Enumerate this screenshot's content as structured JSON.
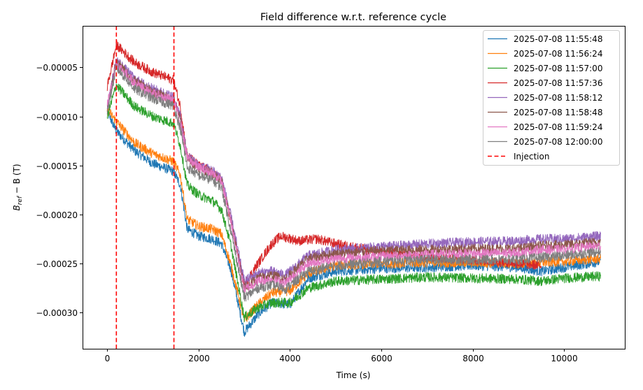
{
  "chart_data": {
    "type": "line",
    "title": "Field difference w.r.t. reference cycle",
    "xlabel": "Time (s)",
    "ylabel_main": "B",
    "ylabel_sub": "ref",
    "ylabel_rest": " − B (T)",
    "xlim": [
      -540,
      11330
    ],
    "ylim": [
      -0.000337,
      -7.6e-06
    ],
    "xticks": [
      0,
      2000,
      4000,
      6000,
      8000,
      10000
    ],
    "xtick_labels": [
      "0",
      "2000",
      "4000",
      "6000",
      "8000",
      "10000"
    ],
    "yticks": [
      -5e-05,
      -0.0001,
      -0.00015,
      -0.0002,
      -0.00025,
      -0.0003
    ],
    "ytick_labels": [
      "−0.00005",
      "−0.00010",
      "−0.00015",
      "−0.00020",
      "−0.00025",
      "−0.00030"
    ],
    "grid": false,
    "legend_position": "top-right",
    "injection": {
      "label": "Injection",
      "x": [
        200,
        1460
      ],
      "color": "#ff0000",
      "style": "dashed"
    },
    "noise_amplitude": 5e-06,
    "series": [
      {
        "name": "2025-07-08 11:55:48",
        "color": "#1f77b4",
        "points": [
          [
            0,
            -9.5e-05
          ],
          [
            200,
            -0.000115
          ],
          [
            600,
            -0.000135
          ],
          [
            1000,
            -0.000148
          ],
          [
            1450,
            -0.000156
          ],
          [
            1600,
            -0.00017
          ],
          [
            1750,
            -0.000215
          ],
          [
            2000,
            -0.000222
          ],
          [
            2300,
            -0.000225
          ],
          [
            2500,
            -0.00023
          ],
          [
            2700,
            -0.000255
          ],
          [
            3000,
            -0.00032
          ],
          [
            3300,
            -0.000302
          ],
          [
            3600,
            -0.00029
          ],
          [
            4000,
            -0.000292
          ],
          [
            4400,
            -0.000265
          ],
          [
            5000,
            -0.000258
          ],
          [
            6000,
            -0.000255
          ],
          [
            7000,
            -0.000254
          ],
          [
            8000,
            -0.000252
          ],
          [
            9000,
            -0.000254
          ],
          [
            9500,
            -0.000258
          ],
          [
            10000,
            -0.000254
          ],
          [
            10800,
            -0.000248
          ]
        ]
      },
      {
        "name": "2025-07-08 11:56:24",
        "color": "#ff7f0e",
        "points": [
          [
            0,
            -9.3e-05
          ],
          [
            200,
            -0.000105
          ],
          [
            600,
            -0.000127
          ],
          [
            1000,
            -0.000138
          ],
          [
            1450,
            -0.000146
          ],
          [
            1600,
            -0.00016
          ],
          [
            1750,
            -0.000205
          ],
          [
            2000,
            -0.000212
          ],
          [
            2300,
            -0.000215
          ],
          [
            2500,
            -0.00022
          ],
          [
            2700,
            -0.00025
          ],
          [
            3000,
            -0.000308
          ],
          [
            3300,
            -0.000292
          ],
          [
            3600,
            -0.00028
          ],
          [
            4000,
            -0.000278
          ],
          [
            4400,
            -0.00026
          ],
          [
            5000,
            -0.000252
          ],
          [
            6000,
            -0.00025
          ],
          [
            7000,
            -0.000249
          ],
          [
            8000,
            -0.000249
          ],
          [
            9000,
            -0.00025
          ],
          [
            10000,
            -0.000248
          ],
          [
            10800,
            -0.000245
          ]
        ]
      },
      {
        "name": "2025-07-08 11:57:00",
        "color": "#2ca02c",
        "points": [
          [
            0,
            -0.0001
          ],
          [
            200,
            -6.8e-05
          ],
          [
            600,
            -9e-05
          ],
          [
            1000,
            -0.0001
          ],
          [
            1450,
            -0.000107
          ],
          [
            1600,
            -0.00013
          ],
          [
            1750,
            -0.00017
          ],
          [
            2000,
            -0.00018
          ],
          [
            2300,
            -0.000186
          ],
          [
            2500,
            -0.000195
          ],
          [
            2700,
            -0.00023
          ],
          [
            3000,
            -0.000305
          ],
          [
            3300,
            -0.000295
          ],
          [
            3600,
            -0.00029
          ],
          [
            4000,
            -0.00029
          ],
          [
            4400,
            -0.000275
          ],
          [
            5000,
            -0.000268
          ],
          [
            6000,
            -0.000266
          ],
          [
            7000,
            -0.000264
          ],
          [
            8000,
            -0.000265
          ],
          [
            9000,
            -0.000266
          ],
          [
            9500,
            -0.000268
          ],
          [
            10000,
            -0.000265
          ],
          [
            10800,
            -0.000263
          ]
        ]
      },
      {
        "name": "2025-07-08 11:57:36",
        "color": "#d62728",
        "points": [
          [
            0,
            -7e-05
          ],
          [
            200,
            -2.7e-05
          ],
          [
            600,
            -4.5e-05
          ],
          [
            1000,
            -5.5e-05
          ],
          [
            1450,
            -6.3e-05
          ],
          [
            1600,
            -9e-05
          ],
          [
            1750,
            -0.00014
          ],
          [
            2000,
            -0.00015
          ],
          [
            2300,
            -0.000157
          ],
          [
            2500,
            -0.000165
          ],
          [
            2700,
            -0.000205
          ],
          [
            3000,
            -0.000272
          ],
          [
            3300,
            -0.00025
          ],
          [
            3600,
            -0.00023
          ],
          [
            3800,
            -0.000222
          ],
          [
            4200,
            -0.000227
          ],
          [
            4600,
            -0.000225
          ],
          [
            5000,
            -0.00023
          ],
          [
            6000,
            -0.000238
          ],
          [
            7000,
            -0.000243
          ],
          [
            8000,
            -0.000246
          ],
          [
            9000,
            -0.00025
          ],
          [
            9500,
            -0.000252
          ]
        ]
      },
      {
        "name": "2025-07-08 11:58:12",
        "color": "#9467bd",
        "points": [
          [
            0,
            -9e-05
          ],
          [
            200,
            -4.2e-05
          ],
          [
            600,
            -6.2e-05
          ],
          [
            1000,
            -7.2e-05
          ],
          [
            1450,
            -8e-05
          ],
          [
            1600,
            -0.0001
          ],
          [
            1750,
            -0.00014
          ],
          [
            2000,
            -0.00015
          ],
          [
            2300,
            -0.000155
          ],
          [
            2500,
            -0.000162
          ],
          [
            2700,
            -0.0002
          ],
          [
            3000,
            -0.000268
          ],
          [
            3300,
            -0.00026
          ],
          [
            3600,
            -0.000258
          ],
          [
            3900,
            -0.000262
          ],
          [
            4400,
            -0.000242
          ],
          [
            5000,
            -0.000236
          ],
          [
            6000,
            -0.000233
          ],
          [
            7000,
            -0.00023
          ],
          [
            8000,
            -0.000228
          ],
          [
            9000,
            -0.000227
          ],
          [
            9500,
            -0.000225
          ],
          [
            10000,
            -0.000225
          ],
          [
            10800,
            -0.000222
          ]
        ]
      },
      {
        "name": "2025-07-08 11:58:48",
        "color": "#8c564b",
        "points": [
          [
            0,
            -9e-05
          ],
          [
            200,
            -4.5e-05
          ],
          [
            600,
            -6.4e-05
          ],
          [
            1000,
            -7.5e-05
          ],
          [
            1450,
            -8.3e-05
          ],
          [
            1600,
            -0.000103
          ],
          [
            1750,
            -0.000143
          ],
          [
            2000,
            -0.000152
          ],
          [
            2300,
            -0.000158
          ],
          [
            2500,
            -0.000165
          ],
          [
            2700,
            -0.000205
          ],
          [
            3000,
            -0.000275
          ],
          [
            3300,
            -0.000265
          ],
          [
            3600,
            -0.000262
          ],
          [
            3900,
            -0.000266
          ],
          [
            4400,
            -0.000245
          ],
          [
            5000,
            -0.00024
          ],
          [
            6000,
            -0.000237
          ],
          [
            7000,
            -0.000236
          ],
          [
            8000,
            -0.000235
          ],
          [
            9000,
            -0.000235
          ],
          [
            9500,
            -0.000232
          ],
          [
            10000,
            -0.000231
          ],
          [
            10800,
            -0.000228
          ]
        ]
      },
      {
        "name": "2025-07-08 11:59:24",
        "color": "#e377c2",
        "points": [
          [
            0,
            -8.8e-05
          ],
          [
            200,
            -4.6e-05
          ],
          [
            600,
            -6.6e-05
          ],
          [
            1000,
            -7.7e-05
          ],
          [
            1450,
            -8.4e-05
          ],
          [
            1600,
            -0.000105
          ],
          [
            1750,
            -0.000142
          ],
          [
            2000,
            -0.000152
          ],
          [
            2300,
            -0.000158
          ],
          [
            2500,
            -0.000166
          ],
          [
            2700,
            -0.000205
          ],
          [
            3000,
            -0.000277
          ],
          [
            3300,
            -0.000268
          ],
          [
            3600,
            -0.000266
          ],
          [
            3900,
            -0.00027
          ],
          [
            4400,
            -0.00025
          ],
          [
            5000,
            -0.000245
          ],
          [
            6000,
            -0.000243
          ],
          [
            7000,
            -0.000241
          ],
          [
            8000,
            -0.00024
          ],
          [
            9000,
            -0.000239
          ],
          [
            9500,
            -0.000236
          ],
          [
            10000,
            -0.000236
          ],
          [
            10800,
            -0.000232
          ]
        ]
      },
      {
        "name": "2025-07-08 12:00:00",
        "color": "#7f7f7f",
        "points": [
          [
            0,
            -9.5e-05
          ],
          [
            200,
            -5e-05
          ],
          [
            600,
            -7.2e-05
          ],
          [
            1000,
            -8.2e-05
          ],
          [
            1450,
            -8.9e-05
          ],
          [
            1600,
            -0.000112
          ],
          [
            1750,
            -0.000152
          ],
          [
            2000,
            -0.00016
          ],
          [
            2300,
            -0.000165
          ],
          [
            2500,
            -0.000172
          ],
          [
            2700,
            -0.000215
          ],
          [
            3000,
            -0.000285
          ],
          [
            3300,
            -0.000275
          ],
          [
            3600,
            -0.000272
          ],
          [
            3900,
            -0.000276
          ],
          [
            4400,
            -0.000258
          ],
          [
            5000,
            -0.000252
          ],
          [
            6000,
            -0.000248
          ],
          [
            7000,
            -0.000246
          ],
          [
            8000,
            -0.000246
          ],
          [
            9000,
            -0.000246
          ],
          [
            9500,
            -0.000244
          ],
          [
            10000,
            -0.000242
          ],
          [
            10800,
            -0.000238
          ]
        ]
      }
    ]
  }
}
